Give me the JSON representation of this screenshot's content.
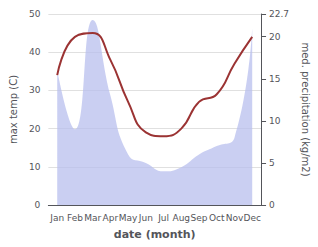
{
  "chart_data": {
    "type": "line",
    "xlabel": "date (month)",
    "ylabel": "max temp (C)",
    "y2label": "med. precipitation (kg/m2)",
    "categories": [
      "Jan",
      "Feb",
      "Mar",
      "Apr",
      "May",
      "Jun",
      "Jul",
      "Aug",
      "Sep",
      "Oct",
      "Nov",
      "Dec"
    ],
    "series": [
      {
        "type": "area",
        "axis": "y2",
        "color": "#b8bfee",
        "values": [
          16.0,
          9.0,
          22.0,
          13.0,
          6.0,
          5.0,
          4.0,
          4.5,
          6.0,
          7.0,
          8.0,
          21.0
        ]
      },
      {
        "type": "line",
        "axis": "y",
        "color": "#9b3333",
        "values": [
          34.0,
          44.0,
          45.0,
          38.0,
          27.0,
          19.0,
          18.0,
          20.0,
          27.0,
          29.0,
          37.0,
          44.0
        ]
      }
    ],
    "ylim": [
      0,
      50
    ],
    "yticks": [
      0,
      10,
      20,
      30,
      40,
      50
    ],
    "y2lim": [
      0,
      22.7
    ],
    "y2ticks": [
      0,
      5,
      10,
      15,
      20
    ],
    "grid": true,
    "background_color": "#ffffff"
  }
}
